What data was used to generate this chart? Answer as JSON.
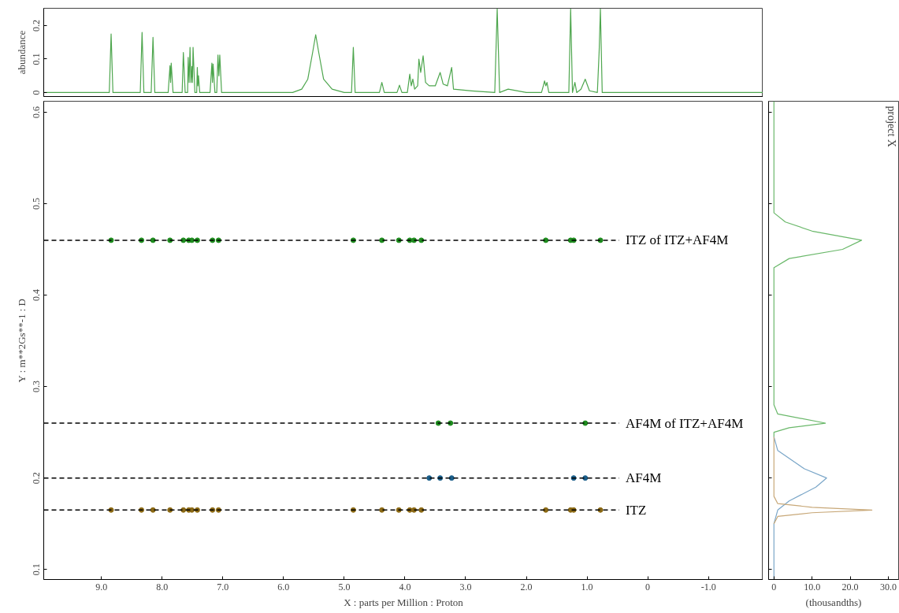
{
  "chart_data": [
    {
      "type": "line",
      "ylabel": "abundance",
      "color": "#4ea64e",
      "xlim": [
        9.95,
        -1.9
      ],
      "ylim": [
        -0.012,
        0.252
      ],
      "yticks": [
        0,
        0.1,
        0.2
      ],
      "tick_labels": "y",
      "grid": false,
      "x": [
        9.95,
        8.87,
        8.84,
        8.81,
        8.36,
        8.33,
        8.3,
        8.18,
        8.15,
        8.12,
        7.9,
        7.87,
        7.86,
        7.85,
        7.82,
        7.67,
        7.65,
        7.62,
        7.58,
        7.57,
        7.555,
        7.54,
        7.525,
        7.51,
        7.5,
        7.49,
        7.46,
        7.43,
        7.42,
        7.41,
        7.4,
        7.38,
        7.21,
        7.18,
        7.17,
        7.16,
        7.13,
        7.1,
        7.08,
        7.065,
        7.05,
        7.02,
        5.85,
        5.7,
        5.6,
        5.52,
        5.47,
        5.42,
        5.34,
        5.2,
        5.0,
        4.88,
        4.85,
        4.82,
        4.42,
        4.38,
        4.34,
        4.13,
        4.09,
        4.05,
        3.96,
        3.92,
        3.895,
        3.87,
        3.84,
        3.79,
        3.77,
        3.74,
        3.7,
        3.66,
        3.6,
        3.5,
        3.42,
        3.37,
        3.3,
        3.23,
        3.2,
        2.9,
        2.52,
        2.48,
        2.44,
        2.3,
        2.0,
        1.75,
        1.72,
        1.7,
        1.68,
        1.66,
        1.63,
        1.3,
        1.27,
        1.24,
        1.2,
        1.17,
        1.1,
        1.03,
        0.96,
        0.83,
        0.8,
        0.78,
        0.75,
        -1.9
      ],
      "values": [
        0,
        0,
        0.175,
        0,
        0,
        0.18,
        0,
        0,
        0.165,
        0,
        0,
        0.08,
        0.03,
        0.088,
        0,
        0,
        0.12,
        0,
        0,
        0.105,
        0.03,
        0.135,
        0.03,
        0.078,
        0.03,
        0.135,
        0,
        0,
        0.075,
        0.02,
        0.05,
        0,
        0,
        0.088,
        0.03,
        0.085,
        0,
        0,
        0.112,
        0.05,
        0.112,
        0,
        0,
        0.01,
        0.04,
        0.12,
        0.173,
        0.12,
        0.04,
        0.01,
        0,
        0,
        0.135,
        0,
        0,
        0.03,
        0,
        0,
        0.022,
        0,
        0,
        0.055,
        0.02,
        0.04,
        0.01,
        0.02,
        0.1,
        0.06,
        0.11,
        0.03,
        0.02,
        0.02,
        0.06,
        0.025,
        0.02,
        0.075,
        0.01,
        0.005,
        0,
        0.25,
        0,
        0.01,
        0,
        0,
        0.02,
        0.035,
        0.02,
        0.03,
        0,
        0,
        0.25,
        0,
        0.03,
        0,
        0.01,
        0.04,
        0.005,
        0,
        0.125,
        0.25,
        0,
        0
      ]
    },
    {
      "type": "scatter",
      "marker": "circle",
      "xlabel": "X : parts per Million : Proton",
      "ylabel": "Y : m**2Gs**-1 : D",
      "xlim": [
        9.95,
        -1.9
      ],
      "ylim": [
        0.089,
        0.612
      ],
      "grid": false,
      "xticks": [
        {
          "value": 9,
          "label": "9.0"
        },
        {
          "value": 8,
          "label": "8.0"
        },
        {
          "value": 7,
          "label": "7.0"
        },
        {
          "value": 6,
          "label": "6.0"
        },
        {
          "value": 5,
          "label": "5.0"
        },
        {
          "value": 4,
          "label": "4.0"
        },
        {
          "value": 3,
          "label": "3.0"
        },
        {
          "value": 2,
          "label": "2.0"
        },
        {
          "value": 1,
          "label": "1.0"
        },
        0,
        {
          "value": -1,
          "label": "-1.0"
        }
      ],
      "yticks": [
        0.1,
        0.2,
        0.3,
        0.4,
        0.5,
        0.6
      ],
      "series": [
        {
          "color": "#1e8c1e",
          "x": [
            8.84,
            8.34,
            8.15,
            7.87,
            7.65,
            7.56,
            7.51,
            7.42,
            7.17,
            7.07,
            4.85,
            4.38,
            4.1,
            3.92,
            3.85,
            3.73,
            1.68,
            1.27,
            1.22,
            0.78
          ],
          "values": [
            0.46,
            0.46,
            0.46,
            0.46,
            0.46,
            0.46,
            0.46,
            0.46,
            0.46,
            0.46,
            0.46,
            0.46,
            0.46,
            0.46,
            0.46,
            0.46,
            0.46,
            0.46,
            0.46,
            0.46
          ]
        },
        {
          "color": "#1e8c1e",
          "x": [
            3.45,
            3.25,
            1.03
          ],
          "values": [
            0.26,
            0.26,
            0.26
          ]
        },
        {
          "color": "#1a5e8a",
          "x": [
            3.6,
            3.42,
            3.23,
            1.22,
            1.03
          ],
          "values": [
            0.2,
            0.2,
            0.2,
            0.2,
            0.2
          ]
        },
        {
          "color": "#8b6914",
          "x": [
            8.84,
            8.34,
            8.15,
            7.87,
            7.65,
            7.56,
            7.51,
            7.42,
            7.17,
            7.07,
            4.85,
            4.38,
            4.1,
            3.92,
            3.85,
            3.73,
            1.68,
            1.27,
            1.22,
            0.78
          ],
          "values": [
            0.165,
            0.165,
            0.165,
            0.165,
            0.165,
            0.165,
            0.165,
            0.165,
            0.165,
            0.165,
            0.165,
            0.165,
            0.165,
            0.165,
            0.165,
            0.165,
            0.165,
            0.165,
            0.165,
            0.165
          ]
        }
      ],
      "ref_lines": [
        {
          "axis": "y",
          "value": 0.46,
          "label": "ITZ of ITZ+AF4M",
          "line_style": "dashed",
          "color": "#000000"
        },
        {
          "axis": "y",
          "value": 0.26,
          "label": "AF4M of ITZ+AF4M",
          "line_style": "dashed",
          "color": "#000000"
        },
        {
          "axis": "y",
          "value": 0.2,
          "label": "AF4M",
          "line_style": "dashed",
          "color": "#000000"
        },
        {
          "axis": "y",
          "value": 0.165,
          "label": "ITZ",
          "line_style": "dashed",
          "color": "#000000"
        }
      ]
    },
    {
      "type": "line",
      "orientation": "horizontal",
      "xlabel": "(thousandths)",
      "annotations": [
        "project X"
      ],
      "xlim": [
        -1.4,
        32.7
      ],
      "ylim": [
        0.089,
        0.612
      ],
      "tick_labels": "x",
      "grid": false,
      "xticks": [
        0,
        {
          "value": 10,
          "label": "10.0"
        },
        {
          "value": 20,
          "label": "20.0"
        },
        {
          "value": 30,
          "label": "30.0"
        }
      ],
      "series": [
        {
          "color": "#6ab86a",
          "x": [
            0.612,
            0.49,
            0.48,
            0.47,
            0.46,
            0.45,
            0.44,
            0.43,
            0.28,
            0.27,
            0.26,
            0.255,
            0.25,
            0.245
          ],
          "values": [
            0,
            0,
            3,
            10,
            23,
            18,
            4,
            0,
            0,
            1,
            13.5,
            4,
            0,
            0
          ]
        },
        {
          "color": "#7aa6c8",
          "x": [
            0.245,
            0.23,
            0.21,
            0.2,
            0.19,
            0.175,
            0.165,
            0.15,
            0.089
          ],
          "values": [
            0,
            1,
            8,
            13.8,
            11,
            4,
            1,
            0,
            0
          ]
        },
        {
          "color": "#c8a878",
          "x": [
            0.245,
            0.18,
            0.172,
            0.168,
            0.165,
            0.162,
            0.158,
            0.15
          ],
          "values": [
            0,
            0,
            1,
            10,
            25.7,
            10,
            1,
            0
          ]
        }
      ]
    }
  ]
}
